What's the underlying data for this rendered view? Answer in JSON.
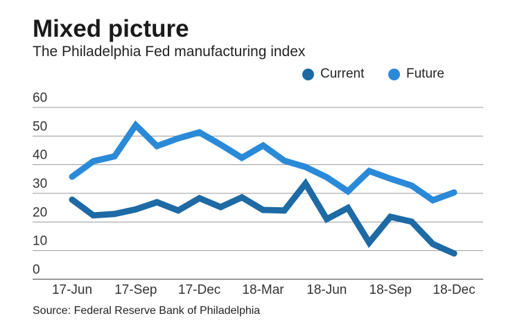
{
  "title": "Mixed picture",
  "subtitle": "The Philadelphia Fed manufacturing index",
  "source": "Source: Federal Reserve Bank of Philadelphia",
  "chart_data": {
    "type": "line",
    "x": [
      "17-Jun",
      "17-Jul",
      "17-Aug",
      "17-Sep",
      "17-Oct",
      "17-Nov",
      "17-Dec",
      "18-Jan",
      "18-Feb",
      "18-Mar",
      "18-Apr",
      "18-May",
      "18-Jun",
      "18-Jul",
      "18-Aug",
      "18-Sep",
      "18-Oct",
      "18-Nov",
      "18-Dec"
    ],
    "x_tick_labels": [
      "17-Jun",
      "17-Sep",
      "17-Dec",
      "18-Mar",
      "18-Jun",
      "18-Sep",
      "18-Dec"
    ],
    "y_tick_labels": [
      "0",
      "10",
      "20",
      "30",
      "40",
      "50",
      "60"
    ],
    "ylim": [
      0,
      60
    ],
    "grid": true,
    "legend_position": "top-right",
    "series": [
      {
        "name": "Current",
        "color": "#1d6aa5",
        "values": [
          27.8,
          22.3,
          22.8,
          24.4,
          26.9,
          24.0,
          28.3,
          25.2,
          28.6,
          24.2,
          24.0,
          33.4,
          21.0,
          24.9,
          12.8,
          21.8,
          20.1,
          12.3,
          9.0
        ]
      },
      {
        "name": "Future",
        "color": "#2a8ad8",
        "values": [
          35.8,
          41.2,
          42.9,
          53.8,
          46.5,
          49.2,
          51.3,
          47.0,
          42.4,
          46.7,
          41.4,
          39.2,
          35.6,
          30.7,
          37.8,
          35.1,
          32.7,
          27.6,
          30.3
        ]
      }
    ]
  }
}
